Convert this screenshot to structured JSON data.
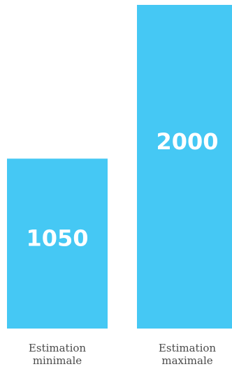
{
  "chart_data": {
    "type": "bar",
    "categories": [
      [
        "Estimation",
        "minimale"
      ],
      [
        "Estimation",
        "maximale"
      ]
    ],
    "values": [
      1050,
      2000
    ],
    "data_labels": [
      "1050",
      "2000"
    ],
    "ylim": [
      0,
      2000
    ],
    "grid": false,
    "bar_color": "#45c8f4",
    "label_color": "#ffffff"
  }
}
